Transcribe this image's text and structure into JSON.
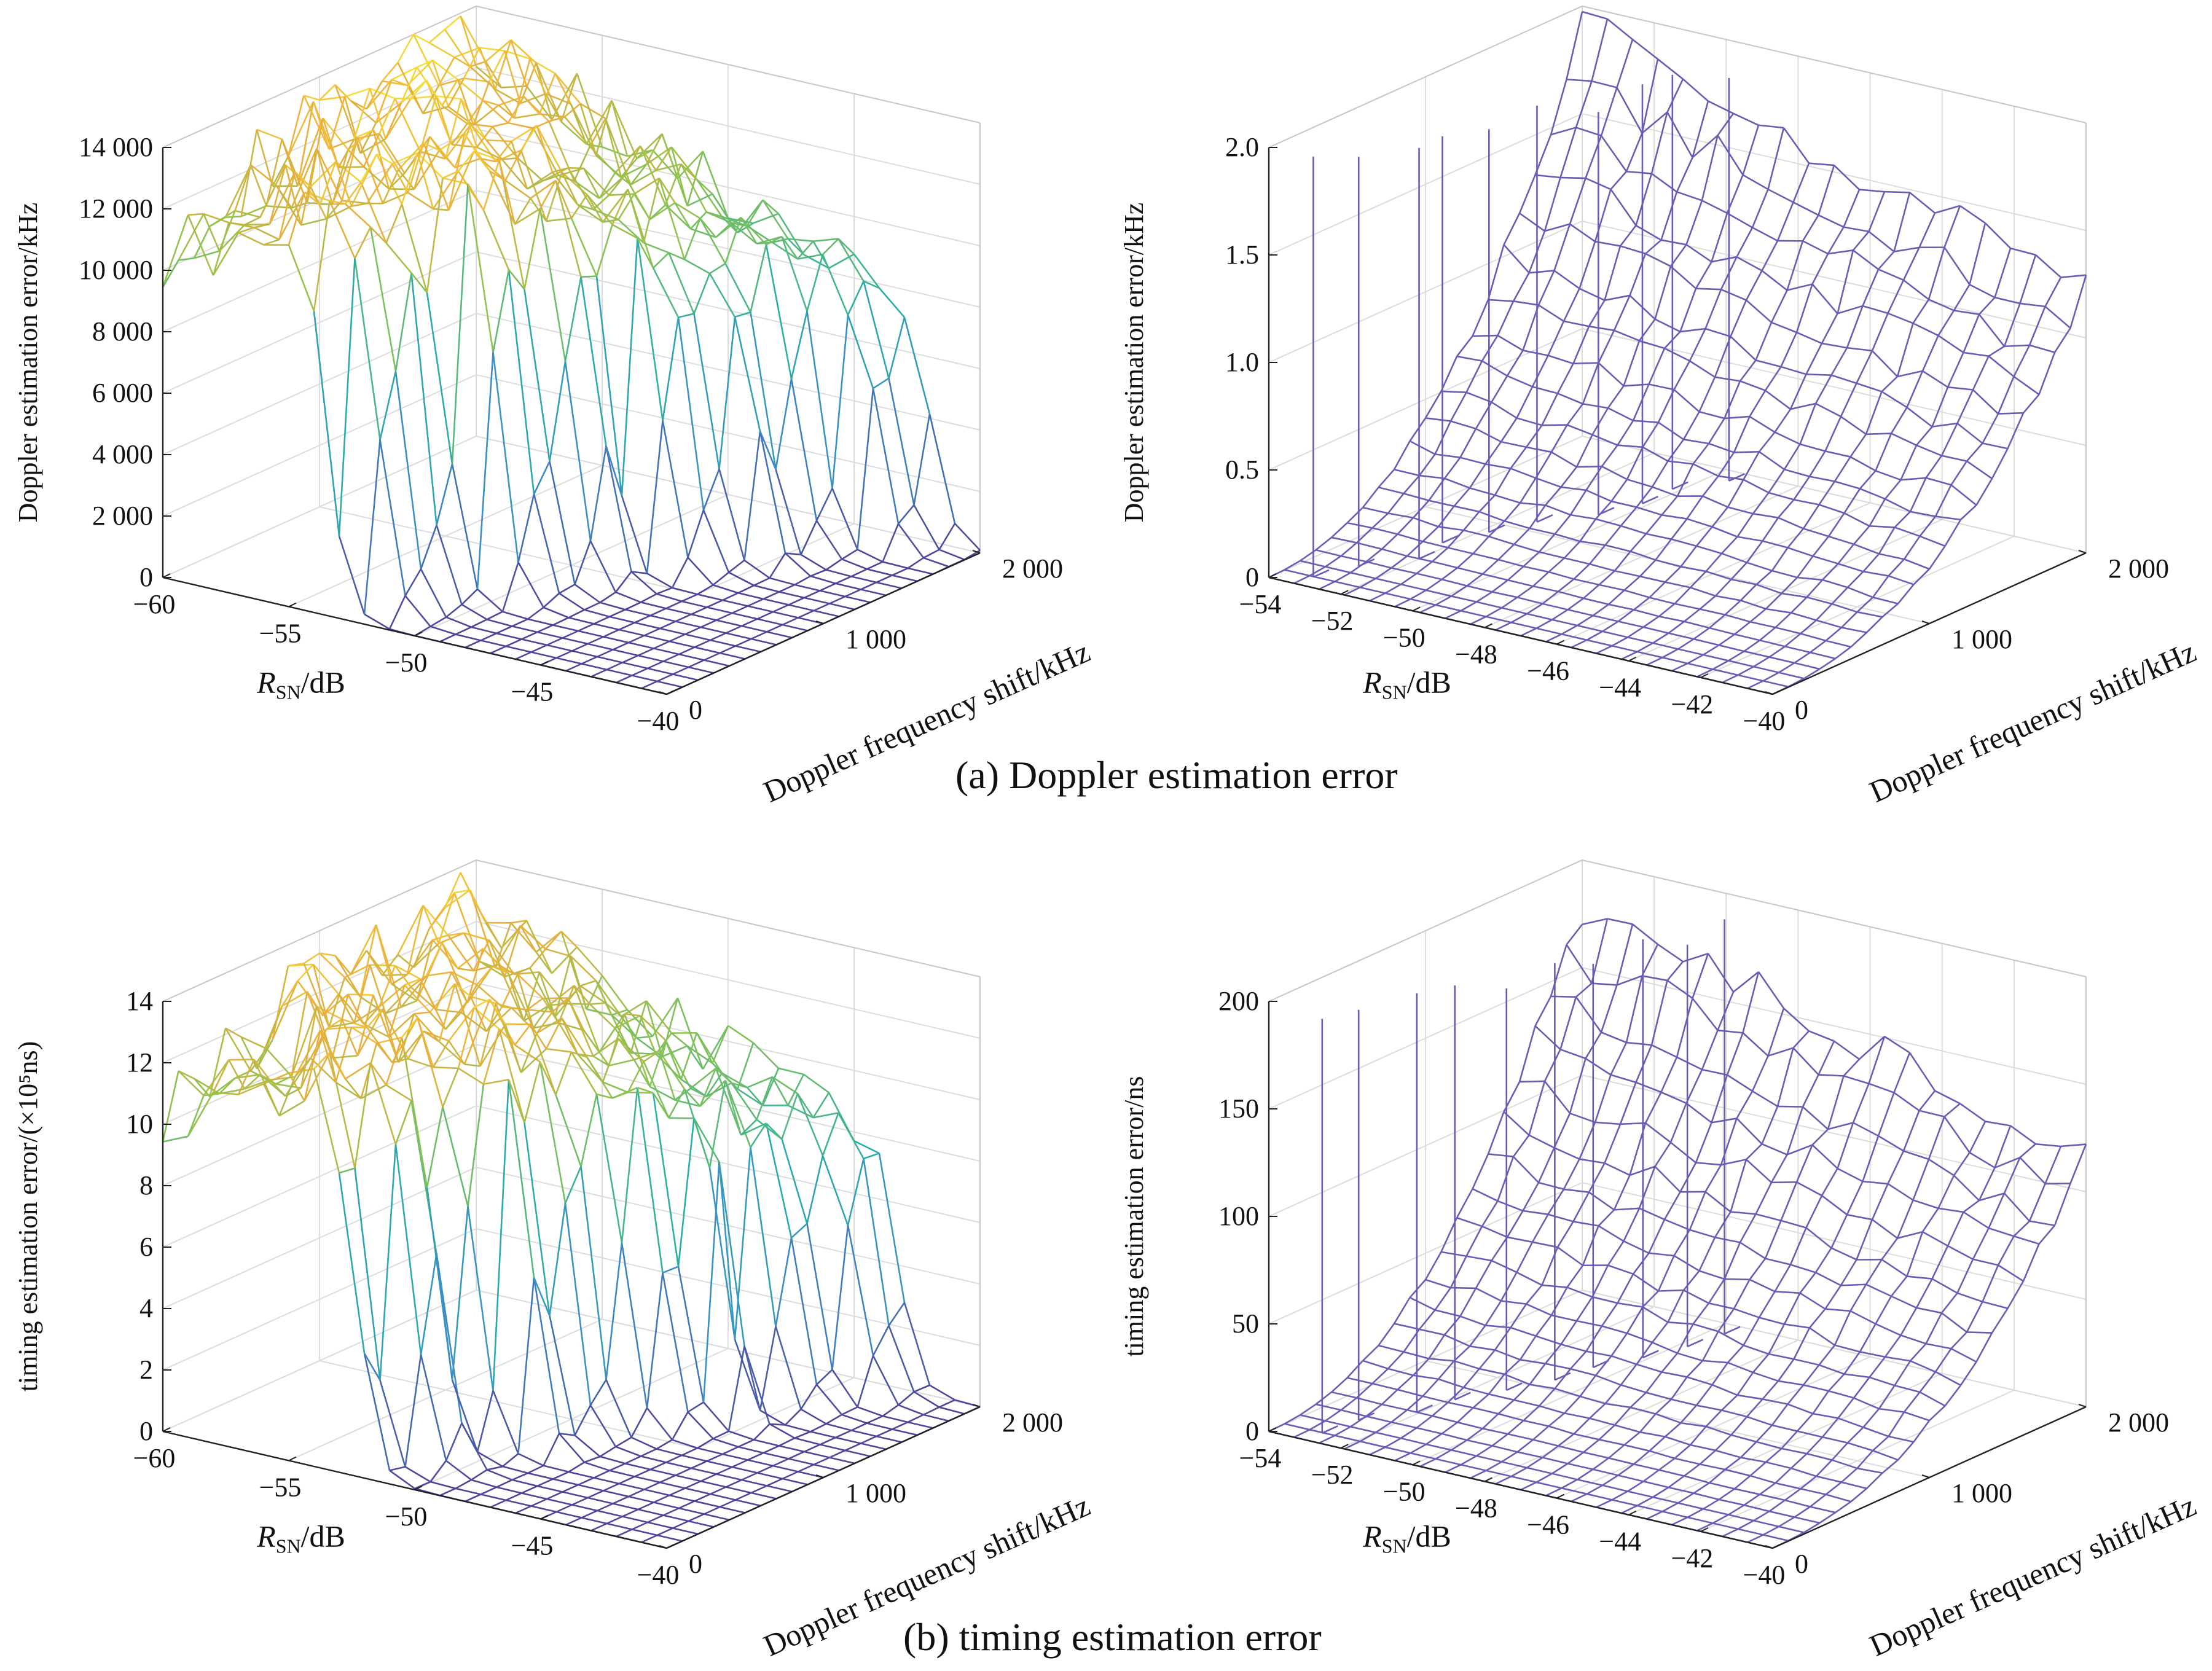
{
  "captions": {
    "a": "(a) Doppler estimation error",
    "b": "(b) timing estimation error"
  },
  "chart_data": [
    {
      "type": "surface",
      "panel": "a-left",
      "zlabel": "Doppler estimation error/kHz",
      "xlabel_main": "R",
      "xlabel_sub": "SN",
      "xlabel_unit": "/dB",
      "ylabel": "Doppler frequency shift/kHz",
      "xlim": [
        -60,
        -40
      ],
      "ylim": [
        0,
        2000
      ],
      "zlim": [
        0,
        14000
      ],
      "xticks": [
        "−60",
        "−55",
        "−50",
        "−45",
        "−40"
      ],
      "yticks": [
        "0",
        "1 000",
        "2 000"
      ],
      "zticks": [
        "0",
        "2 000",
        "4 000",
        "6 000",
        "8 000",
        "10 000",
        "12 000",
        "14 000"
      ],
      "threshold_snr": [
        -53,
        -50,
        -48,
        -46,
        -44,
        -42
      ],
      "high_level": 11800,
      "grid": true
    },
    {
      "type": "surface",
      "panel": "a-right",
      "zlabel": "Doppler estimation error/kHz",
      "xlabel_main": "R",
      "xlabel_sub": "SN",
      "xlabel_unit": "/dB",
      "ylabel": "Doppler frequency shift/kHz",
      "xlim": [
        -54,
        -40
      ],
      "ylim": [
        0,
        2000
      ],
      "zlim": [
        0,
        2.0
      ],
      "xticks": [
        "−54",
        "−52",
        "−50",
        "−48",
        "−46",
        "−44",
        "−42",
        "−40"
      ],
      "yticks": [
        "0",
        "1 000",
        "2 000"
      ],
      "zticks": [
        "0",
        "0.5",
        "1.0",
        "1.5",
        "2.0"
      ],
      "surface_max": 1.9,
      "grid": true
    },
    {
      "type": "surface",
      "panel": "b-left",
      "zlabel": "timing estimation error/(×10⁵ns)",
      "xlabel_main": "R",
      "xlabel_sub": "SN",
      "xlabel_unit": "/dB",
      "ylabel": "Doppler frequency shift/kHz",
      "xlim": [
        -60,
        -40
      ],
      "ylim": [
        0,
        2000
      ],
      "zlim": [
        0,
        14
      ],
      "xticks": [
        "−60",
        "−55",
        "−50",
        "−45",
        "−40"
      ],
      "yticks": [
        "0",
        "1 000",
        "2 000"
      ],
      "zticks": [
        "0",
        "2",
        "4",
        "6",
        "8",
        "10",
        "12",
        "14"
      ],
      "threshold_snr": [
        -53,
        -50,
        -48,
        -46,
        -44,
        -42
      ],
      "high_level": 11.5,
      "grid": true
    },
    {
      "type": "surface",
      "panel": "b-right",
      "zlabel": "timing estimation error/ns",
      "xlabel_main": "R",
      "xlabel_sub": "SN",
      "xlabel_unit": "/dB",
      "ylabel": "Doppler frequency shift/kHz",
      "xlim": [
        -54,
        -40
      ],
      "ylim": [
        0,
        2000
      ],
      "zlim": [
        0,
        200
      ],
      "xticks": [
        "−54",
        "−52",
        "−50",
        "−48",
        "−46",
        "−44",
        "−42",
        "−40"
      ],
      "yticks": [
        "0",
        "1 000",
        "2 000"
      ],
      "zticks": [
        "0",
        "50",
        "100",
        "150",
        "200"
      ],
      "surface_max": 180,
      "grid": true
    }
  ]
}
